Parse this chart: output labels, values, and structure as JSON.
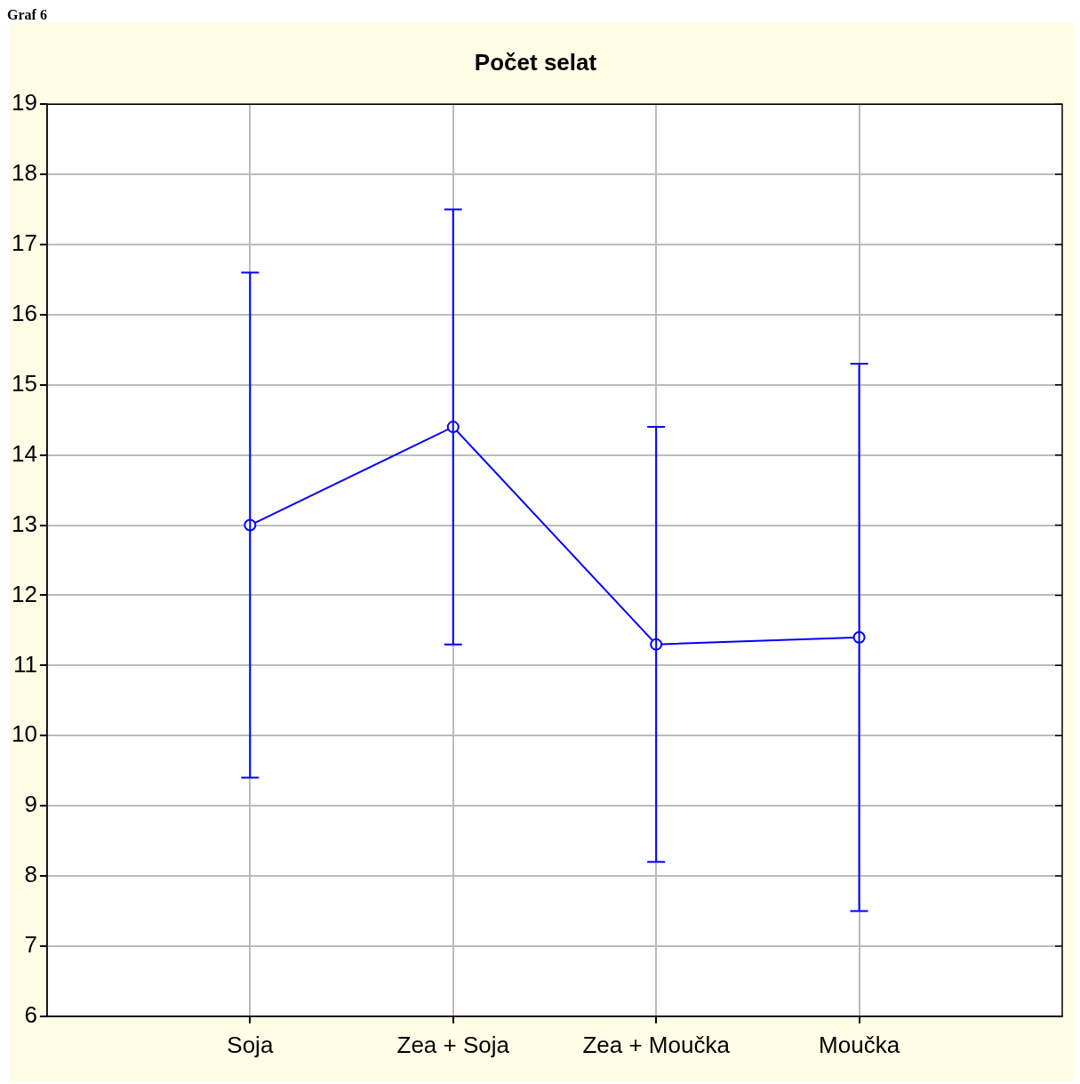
{
  "chart_data": {
    "type": "line",
    "title": "Počet selat",
    "annotations": [
      "Graf 6"
    ],
    "categories": [
      "Soja",
      "Zea + Soja",
      "Zea + Moučka",
      "Moučka"
    ],
    "series": [
      {
        "color": "#0000ff",
        "values": [
          13.0,
          14.4,
          11.3,
          11.4
        ],
        "errors": [
          3.6,
          3.1,
          3.1,
          3.9
        ]
      }
    ],
    "ylim": [
      6,
      19
    ],
    "yticks": [
      6,
      7,
      8,
      9,
      10,
      11,
      12,
      13,
      14,
      15,
      16,
      17,
      18,
      19
    ],
    "grid": true,
    "legend": false,
    "marker": "circle",
    "line_style": "solid"
  }
}
